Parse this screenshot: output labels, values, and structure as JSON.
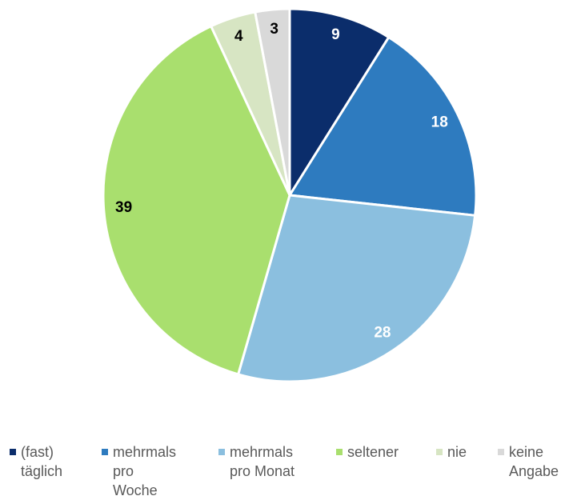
{
  "chart_data": {
    "type": "pie",
    "categories": [
      "(fast) täglich",
      "mehrmals pro Woche",
      "mehrmals pro Monat",
      "seltener",
      "nie",
      "keine Angabe"
    ],
    "values": [
      9,
      18,
      28,
      39,
      4,
      3
    ],
    "colors": [
      "#0b2d6b",
      "#2e7bbf",
      "#8bbfdf",
      "#a9df6e",
      "#d7e5c3",
      "#d9d9d9"
    ],
    "legend": "bottom"
  }
}
